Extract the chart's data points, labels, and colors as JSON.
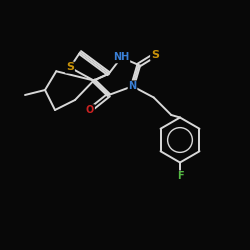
{
  "background": "#080808",
  "bond_color": "#d8d8d8",
  "atom_colors": {
    "S": "#c8920a",
    "N": "#3a7fd5",
    "O": "#cc2222",
    "F": "#55bb44",
    "C": "#d8d8d8",
    "H": "#3a7fd5"
  },
  "bond_width": 1.4,
  "doff": 0.05,
  "bl": 1.0,
  "xlim": [
    0,
    10
  ],
  "ylim": [
    0,
    10
  ]
}
